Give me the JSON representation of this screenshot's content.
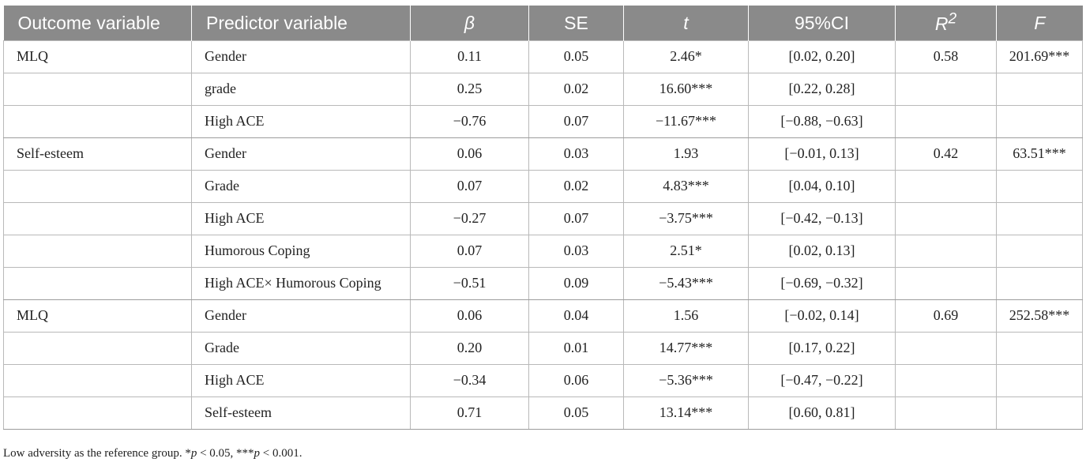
{
  "columns": [
    {
      "label": "Outcome variable",
      "italic": false
    },
    {
      "label": "Predictor variable",
      "italic": false
    },
    {
      "label": "β",
      "italic": true
    },
    {
      "label": "SE",
      "italic": false
    },
    {
      "label": "t",
      "italic": true
    },
    {
      "label": "95%CI",
      "italic": false
    },
    {
      "label": "R2",
      "italic": true
    },
    {
      "label": "F",
      "italic": true
    }
  ],
  "groups": [
    {
      "outcome": "MLQ",
      "r2": "0.58",
      "f": "201.69***",
      "rows": [
        {
          "predictor": "Gender",
          "beta": "0.11",
          "se": "0.05",
          "t": "2.46*",
          "ci": "[0.02, 0.20]"
        },
        {
          "predictor": "grade",
          "beta": "0.25",
          "se": "0.02",
          "t": "16.60***",
          "ci": "[0.22, 0.28]"
        },
        {
          "predictor": "High ACE",
          "beta": "−0.76",
          "se": "0.07",
          "t": "−11.67***",
          "ci": "[−0.88, −0.63]"
        }
      ]
    },
    {
      "outcome": "Self-esteem",
      "r2": "0.42",
      "f": "63.51***",
      "rows": [
        {
          "predictor": "Gender",
          "beta": "0.06",
          "se": "0.03",
          "t": "1.93",
          "ci": "[−0.01, 0.13]"
        },
        {
          "predictor": "Grade",
          "beta": "0.07",
          "se": "0.02",
          "t": "4.83***",
          "ci": "[0.04, 0.10]"
        },
        {
          "predictor": "High ACE",
          "beta": "−0.27",
          "se": "0.07",
          "t": "−3.75***",
          "ci": "[−0.42, −0.13]"
        },
        {
          "predictor": "Humorous Coping",
          "beta": "0.07",
          "se": "0.03",
          "t": "2.51*",
          "ci": "[0.02, 0.13]"
        },
        {
          "predictor": "High ACE× Humorous Coping",
          "beta": "−0.51",
          "se": "0.09",
          "t": "−5.43***",
          "ci": "[−0.69, −0.32]"
        }
      ]
    },
    {
      "outcome": "MLQ",
      "r2": "0.69",
      "f": "252.58***",
      "rows": [
        {
          "predictor": "Gender",
          "beta": "0.06",
          "se": "0.04",
          "t": "1.56",
          "ci": "[−0.02, 0.14]"
        },
        {
          "predictor": "Grade",
          "beta": "0.20",
          "se": "0.01",
          "t": "14.77***",
          "ci": "[0.17, 0.22]"
        },
        {
          "predictor": "High ACE",
          "beta": "−0.34",
          "se": "0.06",
          "t": "−5.36***",
          "ci": "[−0.47, −0.22]"
        },
        {
          "predictor": "Self-esteem",
          "beta": "0.71",
          "se": "0.05",
          "t": "13.14***",
          "ci": "[0.60, 0.81]"
        }
      ]
    }
  ],
  "footnote": {
    "lead": "Low adversity as the reference group. *",
    "p1": "p",
    "mid": " < 0.05, ***",
    "p2": "p",
    "tail": " < 0.001."
  },
  "colors": {
    "header_bg": "#8a8a8a",
    "header_text": "#ffffff",
    "grid": "#b9b9b9"
  }
}
